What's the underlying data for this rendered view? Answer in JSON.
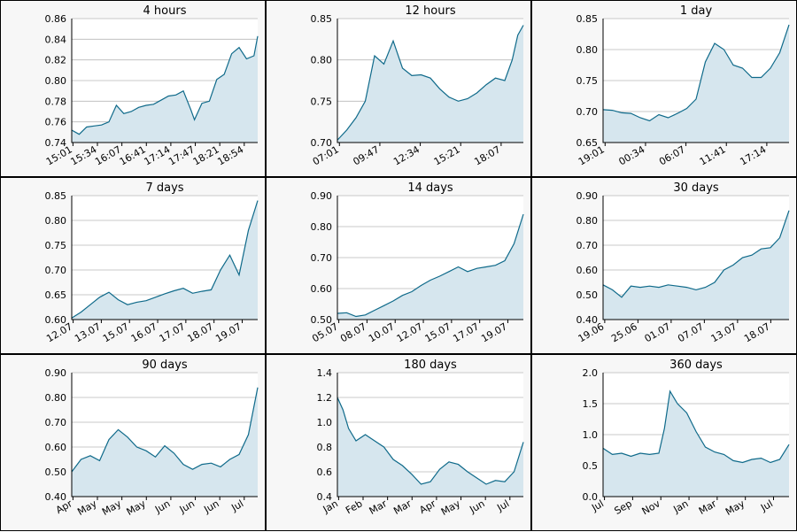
{
  "colors": {
    "line": "#0f6a8a",
    "fill": "#d6e6ee",
    "grid": "#b8b8b8",
    "background": "#f7f7f7",
    "plot_background": "#ffffff"
  },
  "chart_data": [
    {
      "type": "area",
      "title": "4 hours",
      "ylim": [
        0.74,
        0.86
      ],
      "yticks": [
        "0.74",
        "0.76",
        "0.78",
        "0.80",
        "0.82",
        "0.84",
        "0.86"
      ],
      "xticks": [
        "15:01",
        "15:34",
        "16:07",
        "16:41",
        "17:14",
        "17:47",
        "18:21",
        "18:54"
      ],
      "x": [
        0,
        0.04,
        0.08,
        0.12,
        0.16,
        0.2,
        0.24,
        0.28,
        0.32,
        0.36,
        0.4,
        0.44,
        0.48,
        0.52,
        0.56,
        0.6,
        0.64,
        0.66,
        0.7,
        0.74,
        0.78,
        0.82,
        0.86,
        0.9,
        0.94,
        0.98,
        1
      ],
      "y": [
        0.752,
        0.748,
        0.755,
        0.756,
        0.757,
        0.76,
        0.776,
        0.768,
        0.77,
        0.774,
        0.776,
        0.777,
        0.781,
        0.785,
        0.786,
        0.79,
        0.772,
        0.762,
        0.778,
        0.78,
        0.801,
        0.806,
        0.826,
        0.832,
        0.821,
        0.824,
        0.843
      ]
    },
    {
      "type": "area",
      "title": "12 hours",
      "ylim": [
        0.7,
        0.85
      ],
      "yticks": [
        "0.70",
        "0.75",
        "0.80",
        "0.85"
      ],
      "xticks": [
        "07:01",
        "09:47",
        "12:34",
        "15:21",
        "18:07"
      ],
      "x": [
        0,
        0.05,
        0.1,
        0.15,
        0.2,
        0.25,
        0.3,
        0.35,
        0.4,
        0.45,
        0.5,
        0.55,
        0.6,
        0.65,
        0.7,
        0.75,
        0.8,
        0.85,
        0.9,
        0.94,
        0.97,
        1
      ],
      "y": [
        0.703,
        0.715,
        0.73,
        0.75,
        0.805,
        0.795,
        0.823,
        0.79,
        0.781,
        0.782,
        0.778,
        0.765,
        0.755,
        0.75,
        0.753,
        0.76,
        0.77,
        0.778,
        0.775,
        0.8,
        0.83,
        0.842
      ]
    },
    {
      "type": "area",
      "title": "1 day",
      "ylim": [
        0.65,
        0.85
      ],
      "yticks": [
        "0.65",
        "0.70",
        "0.75",
        "0.80",
        "0.85"
      ],
      "xticks": [
        "19:01",
        "00:34",
        "06:07",
        "11:41",
        "17:14"
      ],
      "x": [
        0,
        0.05,
        0.1,
        0.15,
        0.2,
        0.25,
        0.3,
        0.35,
        0.4,
        0.45,
        0.5,
        0.55,
        0.6,
        0.65,
        0.7,
        0.75,
        0.8,
        0.85,
        0.9,
        0.95,
        1
      ],
      "y": [
        0.703,
        0.702,
        0.698,
        0.697,
        0.69,
        0.685,
        0.695,
        0.69,
        0.697,
        0.705,
        0.72,
        0.78,
        0.81,
        0.8,
        0.775,
        0.77,
        0.755,
        0.755,
        0.77,
        0.795,
        0.84
      ]
    },
    {
      "type": "area",
      "title": "7 days",
      "ylim": [
        0.6,
        0.85
      ],
      "yticks": [
        "0.60",
        "0.65",
        "0.70",
        "0.75",
        "0.80",
        "0.85"
      ],
      "xticks": [
        "12.07",
        "13.07",
        "15.07",
        "16.07",
        "17.07",
        "18.07",
        "19.07"
      ],
      "x": [
        0,
        0.05,
        0.1,
        0.15,
        0.2,
        0.25,
        0.3,
        0.35,
        0.4,
        0.45,
        0.5,
        0.55,
        0.6,
        0.65,
        0.7,
        0.75,
        0.8,
        0.85,
        0.9,
        0.95,
        1
      ],
      "y": [
        0.603,
        0.615,
        0.63,
        0.645,
        0.655,
        0.64,
        0.63,
        0.635,
        0.638,
        0.645,
        0.652,
        0.658,
        0.663,
        0.653,
        0.657,
        0.66,
        0.7,
        0.73,
        0.69,
        0.78,
        0.84
      ]
    },
    {
      "type": "area",
      "title": "14 days",
      "ylim": [
        0.5,
        0.9
      ],
      "yticks": [
        "0.50",
        "0.60",
        "0.70",
        "0.80",
        "0.90"
      ],
      "xticks": [
        "05.07",
        "08.07",
        "10.07",
        "12.07",
        "15.07",
        "17.07",
        "19.07"
      ],
      "x": [
        0,
        0.05,
        0.1,
        0.15,
        0.2,
        0.25,
        0.3,
        0.35,
        0.4,
        0.45,
        0.5,
        0.55,
        0.6,
        0.65,
        0.7,
        0.75,
        0.8,
        0.85,
        0.9,
        0.95,
        1
      ],
      "y": [
        0.52,
        0.522,
        0.51,
        0.515,
        0.53,
        0.545,
        0.56,
        0.578,
        0.59,
        0.61,
        0.627,
        0.64,
        0.655,
        0.67,
        0.655,
        0.665,
        0.67,
        0.675,
        0.69,
        0.745,
        0.84
      ]
    },
    {
      "type": "area",
      "title": "30 days",
      "ylim": [
        0.4,
        0.9
      ],
      "yticks": [
        "0.40",
        "0.50",
        "0.60",
        "0.70",
        "0.80",
        "0.90"
      ],
      "xticks": [
        "19.06",
        "25.06",
        "01.07",
        "07.07",
        "13.07",
        "18.07"
      ],
      "x": [
        0,
        0.05,
        0.1,
        0.15,
        0.2,
        0.25,
        0.3,
        0.35,
        0.4,
        0.45,
        0.5,
        0.55,
        0.6,
        0.65,
        0.7,
        0.75,
        0.8,
        0.85,
        0.9,
        0.95,
        1
      ],
      "y": [
        0.54,
        0.52,
        0.49,
        0.535,
        0.53,
        0.535,
        0.53,
        0.54,
        0.535,
        0.53,
        0.52,
        0.53,
        0.55,
        0.6,
        0.62,
        0.65,
        0.66,
        0.685,
        0.69,
        0.73,
        0.84
      ]
    },
    {
      "type": "area",
      "title": "90 days",
      "ylim": [
        0.4,
        0.9
      ],
      "yticks": [
        "0.40",
        "0.50",
        "0.60",
        "0.70",
        "0.80",
        "0.90"
      ],
      "xticks": [
        "Apr",
        "May",
        "May",
        "May",
        "Jun",
        "Jun",
        "Jun",
        "Jul"
      ],
      "x": [
        0,
        0.05,
        0.1,
        0.15,
        0.2,
        0.25,
        0.3,
        0.35,
        0.4,
        0.45,
        0.5,
        0.55,
        0.6,
        0.65,
        0.7,
        0.75,
        0.8,
        0.85,
        0.9,
        0.95,
        1
      ],
      "y": [
        0.5,
        0.55,
        0.565,
        0.545,
        0.63,
        0.67,
        0.64,
        0.6,
        0.585,
        0.56,
        0.605,
        0.575,
        0.53,
        0.51,
        0.53,
        0.535,
        0.52,
        0.55,
        0.57,
        0.65,
        0.84
      ]
    },
    {
      "type": "area",
      "title": "180 days",
      "ylim": [
        0.4,
        1.4
      ],
      "yticks": [
        "0.4",
        "0.6",
        "0.8",
        "1.0",
        "1.2",
        "1.4"
      ],
      "xticks": [
        "Jan",
        "Feb",
        "Mar",
        "Mar",
        "Apr",
        "May",
        "Jun",
        "Jul"
      ],
      "x": [
        0,
        0.03,
        0.06,
        0.1,
        0.15,
        0.2,
        0.25,
        0.3,
        0.35,
        0.4,
        0.45,
        0.5,
        0.55,
        0.6,
        0.65,
        0.7,
        0.75,
        0.8,
        0.85,
        0.9,
        0.95,
        1
      ],
      "y": [
        1.2,
        1.1,
        0.95,
        0.85,
        0.9,
        0.85,
        0.8,
        0.7,
        0.65,
        0.58,
        0.5,
        0.52,
        0.62,
        0.68,
        0.66,
        0.6,
        0.55,
        0.5,
        0.53,
        0.52,
        0.6,
        0.84
      ]
    },
    {
      "type": "area",
      "title": "360 days",
      "ylim": [
        0.0,
        2.0
      ],
      "yticks": [
        "0.0",
        "0.5",
        "1.0",
        "1.5",
        "2.0"
      ],
      "xticks": [
        "Jul",
        "Sep",
        "Nov",
        "Jan",
        "Mar",
        "May",
        "Jul"
      ],
      "x": [
        0,
        0.05,
        0.1,
        0.15,
        0.2,
        0.25,
        0.3,
        0.33,
        0.36,
        0.4,
        0.45,
        0.5,
        0.55,
        0.6,
        0.65,
        0.7,
        0.75,
        0.8,
        0.85,
        0.9,
        0.95,
        1
      ],
      "y": [
        0.78,
        0.68,
        0.7,
        0.65,
        0.7,
        0.68,
        0.7,
        1.1,
        1.7,
        1.5,
        1.35,
        1.05,
        0.8,
        0.72,
        0.68,
        0.58,
        0.55,
        0.6,
        0.62,
        0.55,
        0.6,
        0.84
      ]
    }
  ]
}
